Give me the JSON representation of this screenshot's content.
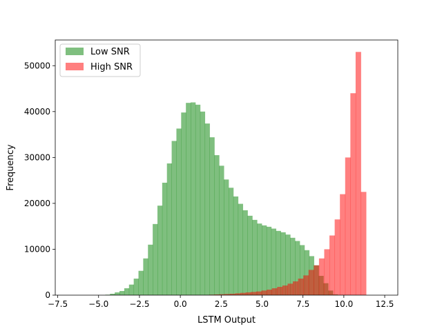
{
  "chart_data": {
    "type": "histogram",
    "title": "",
    "xlabel": "LSTM Output",
    "ylabel": "Frequency",
    "xlim": [
      -7.65,
      13.3
    ],
    "ylim": [
      0,
      55600
    ],
    "xticks": [
      -7.5,
      -5.0,
      -2.5,
      0.0,
      2.5,
      5.0,
      7.5,
      10.0,
      12.5
    ],
    "xtick_labels": [
      "−7.5",
      "−5.0",
      "−2.5",
      "0.0",
      "2.5",
      "5.0",
      "7.5",
      "10.0",
      "12.5"
    ],
    "yticks": [
      0,
      10000,
      20000,
      30000,
      40000,
      50000
    ],
    "ytick_labels": [
      "0",
      "10000",
      "20000",
      "30000",
      "40000",
      "50000"
    ],
    "grid": false,
    "legend_position": "top-left",
    "series": [
      {
        "name": "Low SNR",
        "color": "#008000",
        "opacity": 0.5,
        "bin_start": -7.2,
        "bin_width": 0.29,
        "counts": [
          0,
          0,
          0,
          0,
          0,
          0,
          0,
          0,
          0,
          100,
          300,
          600,
          900,
          1500,
          2300,
          3600,
          5300,
          8000,
          11000,
          15500,
          19500,
          24500,
          28700,
          33600,
          36300,
          39800,
          41900,
          42000,
          41500,
          40000,
          37400,
          34400,
          30500,
          28200,
          25200,
          23400,
          21500,
          19900,
          18500,
          17300,
          16400,
          15600,
          15200,
          14900,
          14500,
          14000,
          13700,
          13200,
          12500,
          11800,
          10900,
          9800,
          8500,
          6500,
          4200,
          2600,
          1000,
          150,
          0
        ]
      },
      {
        "name": "High SNR",
        "color": "#ff0000",
        "opacity": 0.5,
        "bin_start": -7.2,
        "bin_width": 0.32,
        "counts": [
          0,
          0,
          0,
          0,
          0,
          0,
          0,
          0,
          0,
          0,
          0,
          0,
          0,
          0,
          0,
          0,
          0,
          0,
          0,
          0,
          0,
          0,
          0,
          0,
          0,
          0,
          0,
          0,
          100,
          150,
          200,
          250,
          300,
          400,
          500,
          600,
          700,
          800,
          1000,
          1200,
          1500,
          1800,
          2100,
          2500,
          3000,
          3600,
          4300,
          5500,
          6500,
          8000,
          10000,
          13000,
          16500,
          22000,
          30000,
          44000,
          53000,
          22500,
          0
        ]
      }
    ]
  }
}
